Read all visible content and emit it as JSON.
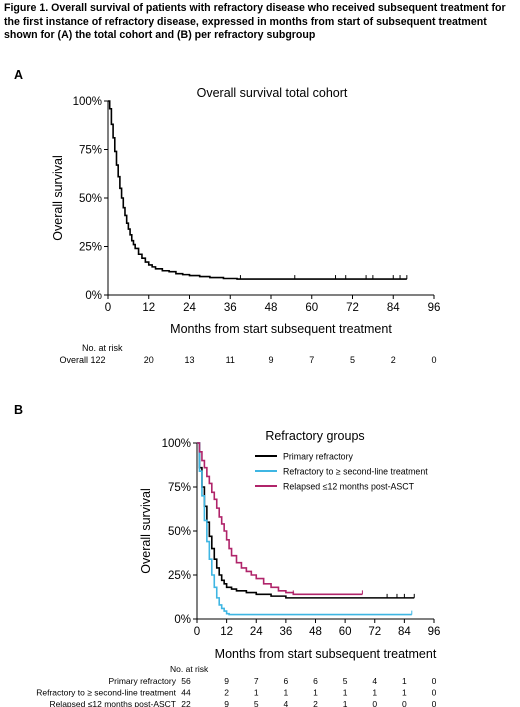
{
  "caption": "Figure 1. Overall survival of patients with refractory disease who received subsequent treatment for the first instance of refractory disease, expressed in months from start of subsequent treatment shown for (A) the total cohort and (B) per refractory subgroup",
  "chart_data": [
    {
      "panel": "A",
      "type": "line",
      "title": "Overall survival total cohort",
      "xlabel": "Months from start subsequent treatment",
      "ylabel": "Overall survival",
      "xlim": [
        0,
        96
      ],
      "ylim": [
        0,
        100
      ],
      "xticks": [
        "0",
        "12",
        "24",
        "36",
        "48",
        "60",
        "72",
        "84",
        "96"
      ],
      "yticks": [
        "0%",
        "25%",
        "50%",
        "75%",
        "100%"
      ],
      "series": [
        {
          "color": "#000000",
          "x": [
            0,
            0.5,
            1,
            1.5,
            2,
            2.5,
            3,
            3.5,
            4,
            4.5,
            5,
            5.5,
            6,
            6.5,
            7,
            7.5,
            8,
            9,
            10,
            11,
            12,
            13,
            14,
            16,
            18,
            20,
            22,
            24,
            27,
            30,
            34,
            38,
            88
          ],
          "y": [
            100,
            96,
            88,
            81,
            74,
            67,
            61,
            55,
            50,
            45,
            41,
            37,
            34,
            31,
            28,
            26,
            24,
            21,
            19,
            17,
            15.5,
            14.5,
            13.5,
            12.5,
            12,
            11,
            10.5,
            10,
            9.5,
            9,
            8.5,
            8.2,
            8.2
          ],
          "censored_x": [
            39,
            55,
            67,
            70,
            76,
            78,
            84,
            86,
            88
          ]
        }
      ],
      "risk_table": {
        "header": "No. at risk",
        "rows": [
          {
            "label": "Overall",
            "values": [
              "122",
              "20",
              "13",
              "11",
              "9",
              "7",
              "5",
              "2",
              "0"
            ]
          }
        ]
      }
    },
    {
      "panel": "B",
      "type": "line",
      "title": "Refractory groups",
      "xlabel": "Months from start subsequent treatment",
      "ylabel": "Overall survival",
      "xlim": [
        0,
        96
      ],
      "ylim": [
        0,
        100
      ],
      "xticks": [
        "0",
        "12",
        "24",
        "36",
        "48",
        "60",
        "72",
        "84",
        "96"
      ],
      "yticks": [
        "0%",
        "25%",
        "50%",
        "75%",
        "100%"
      ],
      "legend_position": "top-right",
      "series": [
        {
          "name": "Primary refractory",
          "color": "#000000",
          "x": [
            0,
            1,
            2,
            3,
            4,
            5,
            6,
            7,
            8,
            9,
            10,
            11,
            12,
            14,
            16,
            20,
            24,
            30,
            36,
            88
          ],
          "y": [
            100,
            86,
            75,
            64,
            55,
            47,
            40,
            34,
            29,
            25,
            22,
            20,
            18,
            17,
            16,
            15,
            14,
            13,
            12,
            12
          ],
          "censored_x": [
            77,
            81,
            84,
            88
          ]
        },
        {
          "name": "Refractory to ≥ second-line treatment",
          "color": "#3fb6e3",
          "x": [
            0,
            1,
            2,
            3,
            4,
            5,
            6,
            7,
            8,
            9,
            10,
            11,
            12,
            13,
            87
          ],
          "y": [
            100,
            84,
            70,
            56,
            44,
            34,
            25,
            18,
            12,
            8,
            6,
            4.5,
            3,
            2.5,
            2.5
          ],
          "censored_x": [
            87
          ]
        },
        {
          "name": "Relapsed ≤12 months post-ASCT",
          "color": "#b0246a",
          "x": [
            0,
            1,
            2,
            3,
            4,
            5,
            6,
            7,
            8,
            9,
            10,
            11,
            12,
            13,
            14,
            16,
            18,
            20,
            22,
            24,
            27,
            30,
            33,
            36,
            39,
            67
          ],
          "y": [
            100,
            95,
            90,
            86,
            81,
            77,
            72,
            68,
            63,
            58,
            54,
            50,
            45,
            40,
            36,
            32,
            29,
            27,
            25,
            23,
            20,
            18,
            16,
            15,
            14,
            14
          ],
          "censored_x": [
            39,
            67
          ]
        }
      ],
      "risk_table": {
        "header": "No. at risk",
        "rows": [
          {
            "label": "Primary refractory",
            "values": [
              "56",
              "9",
              "7",
              "6",
              "6",
              "5",
              "4",
              "1",
              "0"
            ]
          },
          {
            "label": "Refractory to ≥ second-line treatment",
            "values": [
              "44",
              "2",
              "1",
              "1",
              "1",
              "1",
              "1",
              "1",
              "0"
            ]
          },
          {
            "label": "Relapsed ≤12 months post-ASCT",
            "values": [
              "22",
              "9",
              "5",
              "4",
              "2",
              "1",
              "0",
              "0",
              "0"
            ]
          }
        ]
      }
    }
  ],
  "panel_labels": [
    "A",
    "B"
  ]
}
